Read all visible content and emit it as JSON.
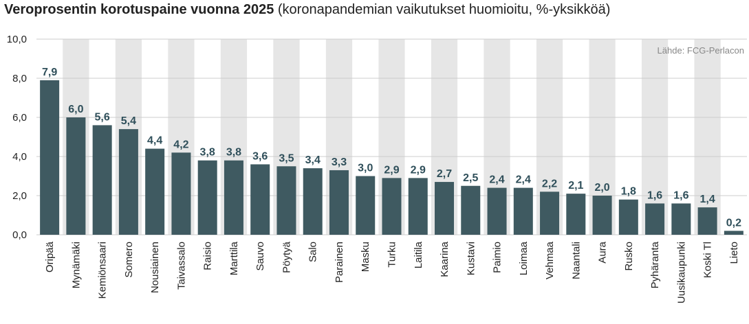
{
  "chart_data": {
    "type": "bar",
    "title": "Veroprosentin korotuspaine vuonna 2025",
    "subtitle": "(koronapandemian vaikutukset huomioitu, %-yksikköä)",
    "source": "Lähde: FCG-Perlacon",
    "categories": [
      "Oripää",
      "Mynämäki",
      "Kemiönsaari",
      "Somero",
      "Nousiainen",
      "Taivassalo",
      "Raisio",
      "Marttila",
      "Sauvo",
      "Pöytyä",
      "Salo",
      "Parainen",
      "Masku",
      "Turku",
      "Laitila",
      "Kaarina",
      "Kustavi",
      "Paimio",
      "Loimaa",
      "Vehmaa",
      "Naantali",
      "Aura",
      "Rusko",
      "Pyhäranta",
      "Uusikaupunki",
      "Koski Tl",
      "Lieto"
    ],
    "values": [
      7.9,
      6.0,
      5.6,
      5.4,
      4.4,
      4.2,
      3.8,
      3.8,
      3.6,
      3.5,
      3.4,
      3.3,
      3.0,
      2.9,
      2.9,
      2.7,
      2.5,
      2.4,
      2.4,
      2.2,
      2.1,
      2.0,
      1.8,
      1.6,
      1.6,
      1.4,
      0.2
    ],
    "value_labels": [
      "7,9",
      "6,0",
      "5,6",
      "5,4",
      "4,4",
      "4,2",
      "3,8",
      "3,8",
      "3,6",
      "3,5",
      "3,4",
      "3,3",
      "3,0",
      "2,9",
      "2,9",
      "2,7",
      "2,5",
      "2,4",
      "2,4",
      "2,2",
      "2,1",
      "2,0",
      "1,8",
      "1,6",
      "1,6",
      "1,4",
      "0,2"
    ],
    "ylim": [
      0,
      10
    ],
    "yticks": [
      0,
      2,
      4,
      6,
      8,
      10
    ],
    "ytick_labels": [
      "0,0",
      "2,0",
      "4,0",
      "6,0",
      "8,0",
      "10,0"
    ],
    "xlabel": "",
    "ylabel": "",
    "grid": true,
    "legend": "none",
    "colors": {
      "bar": "#3f5a61",
      "band": "#e6e6e6",
      "grid": "#cccccc",
      "label": "#2f4f5a"
    }
  }
}
